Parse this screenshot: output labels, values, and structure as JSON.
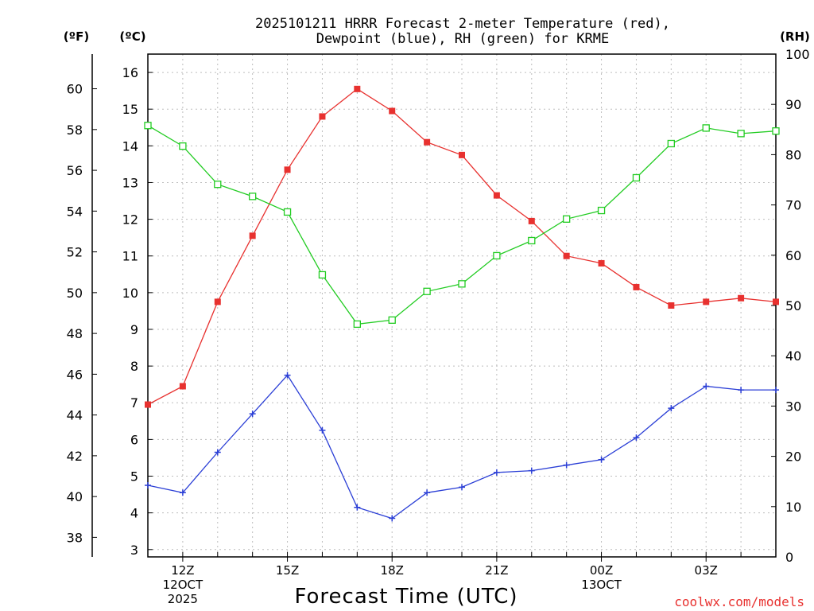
{
  "chart_data": {
    "type": "line",
    "title_line1": "2025101211 HRRR Forecast 2-meter Temperature (red),",
    "title_line2": "Dewpoint (blue), RH (green) for KRME",
    "xlabel": "Forecast Time (UTC)",
    "credit": "coolwx.com/models",
    "units": {
      "fahrenheit": "(ºF)",
      "celsius": "(ºC)",
      "rh": "(RH)"
    },
    "hours": [
      11,
      12,
      13,
      14,
      15,
      16,
      17,
      18,
      19,
      20,
      21,
      22,
      23,
      24,
      25,
      26,
      27,
      28,
      29
    ],
    "x_ticks": [
      {
        "hour": 12,
        "label": "12Z",
        "sub": [
          "12OCT",
          "2025"
        ]
      },
      {
        "hour": 15,
        "label": "15Z",
        "sub": []
      },
      {
        "hour": 18,
        "label": "18Z",
        "sub": []
      },
      {
        "hour": 21,
        "label": "21Z",
        "sub": []
      },
      {
        "hour": 24,
        "label": "00Z",
        "sub": [
          "13OCT"
        ]
      },
      {
        "hour": 27,
        "label": "03Z",
        "sub": []
      }
    ],
    "xlim": [
      11,
      29
    ],
    "celsius_ticks": [
      3,
      4,
      5,
      6,
      7,
      8,
      9,
      10,
      11,
      12,
      13,
      14,
      15,
      16
    ],
    "ylim_celsius": [
      2.8,
      16.5
    ],
    "fahrenheit_ticks": [
      38,
      40,
      42,
      44,
      46,
      48,
      50,
      52,
      54,
      56,
      58,
      60
    ],
    "rh_ticks": [
      0,
      10,
      20,
      30,
      40,
      50,
      60,
      70,
      80,
      90,
      100
    ],
    "ylim_rh": [
      0,
      100
    ],
    "series": [
      {
        "name": "Temperature",
        "axis": "celsius",
        "color": "#e8312f",
        "marker": "filled-square",
        "values": [
          6.95,
          7.45,
          9.75,
          11.55,
          13.35,
          14.8,
          15.55,
          14.95,
          14.1,
          13.75,
          12.65,
          11.95,
          11.0,
          10.8,
          10.15,
          9.65,
          9.75,
          9.85,
          9.75
        ]
      },
      {
        "name": "Dewpoint",
        "axis": "celsius",
        "color": "#2b3fd6",
        "marker": "plus",
        "values": [
          4.75,
          4.55,
          5.65,
          6.7,
          7.75,
          6.25,
          4.15,
          3.85,
          4.55,
          4.7,
          5.1,
          5.15,
          5.3,
          5.45,
          6.05,
          6.85,
          7.45,
          7.35,
          7.35
        ]
      },
      {
        "name": "RH",
        "axis": "rh",
        "color": "#22cc22",
        "marker": "open-square",
        "values": [
          85.8,
          81.7,
          74.1,
          71.7,
          68.6,
          56.1,
          46.3,
          47.1,
          52.8,
          54.3,
          59.9,
          62.9,
          67.2,
          68.9,
          75.4,
          82.2,
          85.3,
          84.2,
          84.7
        ]
      }
    ]
  }
}
